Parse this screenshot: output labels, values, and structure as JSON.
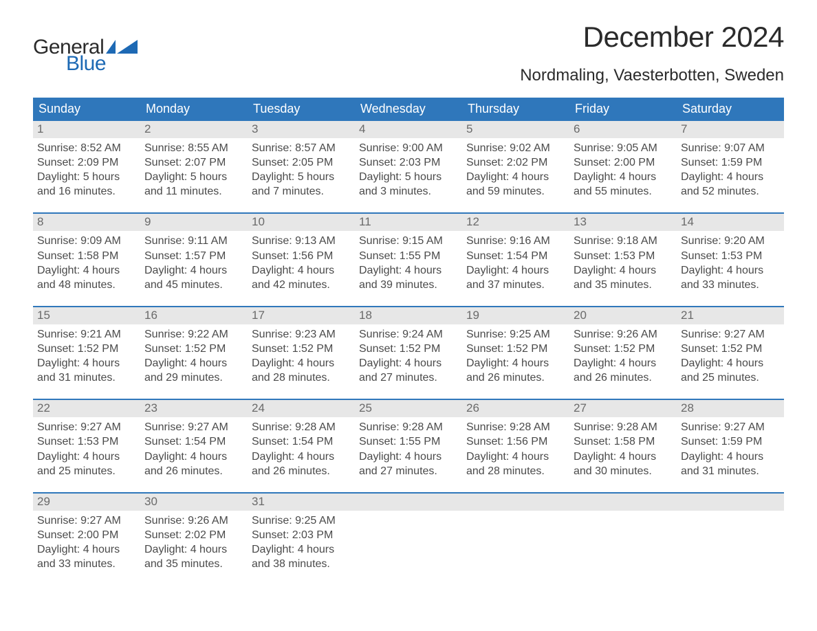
{
  "logo": {
    "text1": "General",
    "text2": "Blue",
    "color_general": "#2b2b2b",
    "color_blue": "#1d69b4",
    "flag_color": "#1d69b4"
  },
  "title": "December 2024",
  "location": "Nordmaling, Vaesterbotten, Sweden",
  "colors": {
    "header_bg": "#2f77bb",
    "header_text": "#ffffff",
    "daynum_bg": "#e7e7e7",
    "week_border": "#2f77bb",
    "body_text": "#4a4a4a",
    "background": "#ffffff"
  },
  "weekdays": [
    "Sunday",
    "Monday",
    "Tuesday",
    "Wednesday",
    "Thursday",
    "Friday",
    "Saturday"
  ],
  "weeks": [
    [
      {
        "n": "1",
        "sunrise": "Sunrise: 8:52 AM",
        "sunset": "Sunset: 2:09 PM",
        "d1": "Daylight: 5 hours",
        "d2": "and 16 minutes."
      },
      {
        "n": "2",
        "sunrise": "Sunrise: 8:55 AM",
        "sunset": "Sunset: 2:07 PM",
        "d1": "Daylight: 5 hours",
        "d2": "and 11 minutes."
      },
      {
        "n": "3",
        "sunrise": "Sunrise: 8:57 AM",
        "sunset": "Sunset: 2:05 PM",
        "d1": "Daylight: 5 hours",
        "d2": "and 7 minutes."
      },
      {
        "n": "4",
        "sunrise": "Sunrise: 9:00 AM",
        "sunset": "Sunset: 2:03 PM",
        "d1": "Daylight: 5 hours",
        "d2": "and 3 minutes."
      },
      {
        "n": "5",
        "sunrise": "Sunrise: 9:02 AM",
        "sunset": "Sunset: 2:02 PM",
        "d1": "Daylight: 4 hours",
        "d2": "and 59 minutes."
      },
      {
        "n": "6",
        "sunrise": "Sunrise: 9:05 AM",
        "sunset": "Sunset: 2:00 PM",
        "d1": "Daylight: 4 hours",
        "d2": "and 55 minutes."
      },
      {
        "n": "7",
        "sunrise": "Sunrise: 9:07 AM",
        "sunset": "Sunset: 1:59 PM",
        "d1": "Daylight: 4 hours",
        "d2": "and 52 minutes."
      }
    ],
    [
      {
        "n": "8",
        "sunrise": "Sunrise: 9:09 AM",
        "sunset": "Sunset: 1:58 PM",
        "d1": "Daylight: 4 hours",
        "d2": "and 48 minutes."
      },
      {
        "n": "9",
        "sunrise": "Sunrise: 9:11 AM",
        "sunset": "Sunset: 1:57 PM",
        "d1": "Daylight: 4 hours",
        "d2": "and 45 minutes."
      },
      {
        "n": "10",
        "sunrise": "Sunrise: 9:13 AM",
        "sunset": "Sunset: 1:56 PM",
        "d1": "Daylight: 4 hours",
        "d2": "and 42 minutes."
      },
      {
        "n": "11",
        "sunrise": "Sunrise: 9:15 AM",
        "sunset": "Sunset: 1:55 PM",
        "d1": "Daylight: 4 hours",
        "d2": "and 39 minutes."
      },
      {
        "n": "12",
        "sunrise": "Sunrise: 9:16 AM",
        "sunset": "Sunset: 1:54 PM",
        "d1": "Daylight: 4 hours",
        "d2": "and 37 minutes."
      },
      {
        "n": "13",
        "sunrise": "Sunrise: 9:18 AM",
        "sunset": "Sunset: 1:53 PM",
        "d1": "Daylight: 4 hours",
        "d2": "and 35 minutes."
      },
      {
        "n": "14",
        "sunrise": "Sunrise: 9:20 AM",
        "sunset": "Sunset: 1:53 PM",
        "d1": "Daylight: 4 hours",
        "d2": "and 33 minutes."
      }
    ],
    [
      {
        "n": "15",
        "sunrise": "Sunrise: 9:21 AM",
        "sunset": "Sunset: 1:52 PM",
        "d1": "Daylight: 4 hours",
        "d2": "and 31 minutes."
      },
      {
        "n": "16",
        "sunrise": "Sunrise: 9:22 AM",
        "sunset": "Sunset: 1:52 PM",
        "d1": "Daylight: 4 hours",
        "d2": "and 29 minutes."
      },
      {
        "n": "17",
        "sunrise": "Sunrise: 9:23 AM",
        "sunset": "Sunset: 1:52 PM",
        "d1": "Daylight: 4 hours",
        "d2": "and 28 minutes."
      },
      {
        "n": "18",
        "sunrise": "Sunrise: 9:24 AM",
        "sunset": "Sunset: 1:52 PM",
        "d1": "Daylight: 4 hours",
        "d2": "and 27 minutes."
      },
      {
        "n": "19",
        "sunrise": "Sunrise: 9:25 AM",
        "sunset": "Sunset: 1:52 PM",
        "d1": "Daylight: 4 hours",
        "d2": "and 26 minutes."
      },
      {
        "n": "20",
        "sunrise": "Sunrise: 9:26 AM",
        "sunset": "Sunset: 1:52 PM",
        "d1": "Daylight: 4 hours",
        "d2": "and 26 minutes."
      },
      {
        "n": "21",
        "sunrise": "Sunrise: 9:27 AM",
        "sunset": "Sunset: 1:52 PM",
        "d1": "Daylight: 4 hours",
        "d2": "and 25 minutes."
      }
    ],
    [
      {
        "n": "22",
        "sunrise": "Sunrise: 9:27 AM",
        "sunset": "Sunset: 1:53 PM",
        "d1": "Daylight: 4 hours",
        "d2": "and 25 minutes."
      },
      {
        "n": "23",
        "sunrise": "Sunrise: 9:27 AM",
        "sunset": "Sunset: 1:54 PM",
        "d1": "Daylight: 4 hours",
        "d2": "and 26 minutes."
      },
      {
        "n": "24",
        "sunrise": "Sunrise: 9:28 AM",
        "sunset": "Sunset: 1:54 PM",
        "d1": "Daylight: 4 hours",
        "d2": "and 26 minutes."
      },
      {
        "n": "25",
        "sunrise": "Sunrise: 9:28 AM",
        "sunset": "Sunset: 1:55 PM",
        "d1": "Daylight: 4 hours",
        "d2": "and 27 minutes."
      },
      {
        "n": "26",
        "sunrise": "Sunrise: 9:28 AM",
        "sunset": "Sunset: 1:56 PM",
        "d1": "Daylight: 4 hours",
        "d2": "and 28 minutes."
      },
      {
        "n": "27",
        "sunrise": "Sunrise: 9:28 AM",
        "sunset": "Sunset: 1:58 PM",
        "d1": "Daylight: 4 hours",
        "d2": "and 30 minutes."
      },
      {
        "n": "28",
        "sunrise": "Sunrise: 9:27 AM",
        "sunset": "Sunset: 1:59 PM",
        "d1": "Daylight: 4 hours",
        "d2": "and 31 minutes."
      }
    ],
    [
      {
        "n": "29",
        "sunrise": "Sunrise: 9:27 AM",
        "sunset": "Sunset: 2:00 PM",
        "d1": "Daylight: 4 hours",
        "d2": "and 33 minutes."
      },
      {
        "n": "30",
        "sunrise": "Sunrise: 9:26 AM",
        "sunset": "Sunset: 2:02 PM",
        "d1": "Daylight: 4 hours",
        "d2": "and 35 minutes."
      },
      {
        "n": "31",
        "sunrise": "Sunrise: 9:25 AM",
        "sunset": "Sunset: 2:03 PM",
        "d1": "Daylight: 4 hours",
        "d2": "and 38 minutes."
      },
      null,
      null,
      null,
      null
    ]
  ]
}
